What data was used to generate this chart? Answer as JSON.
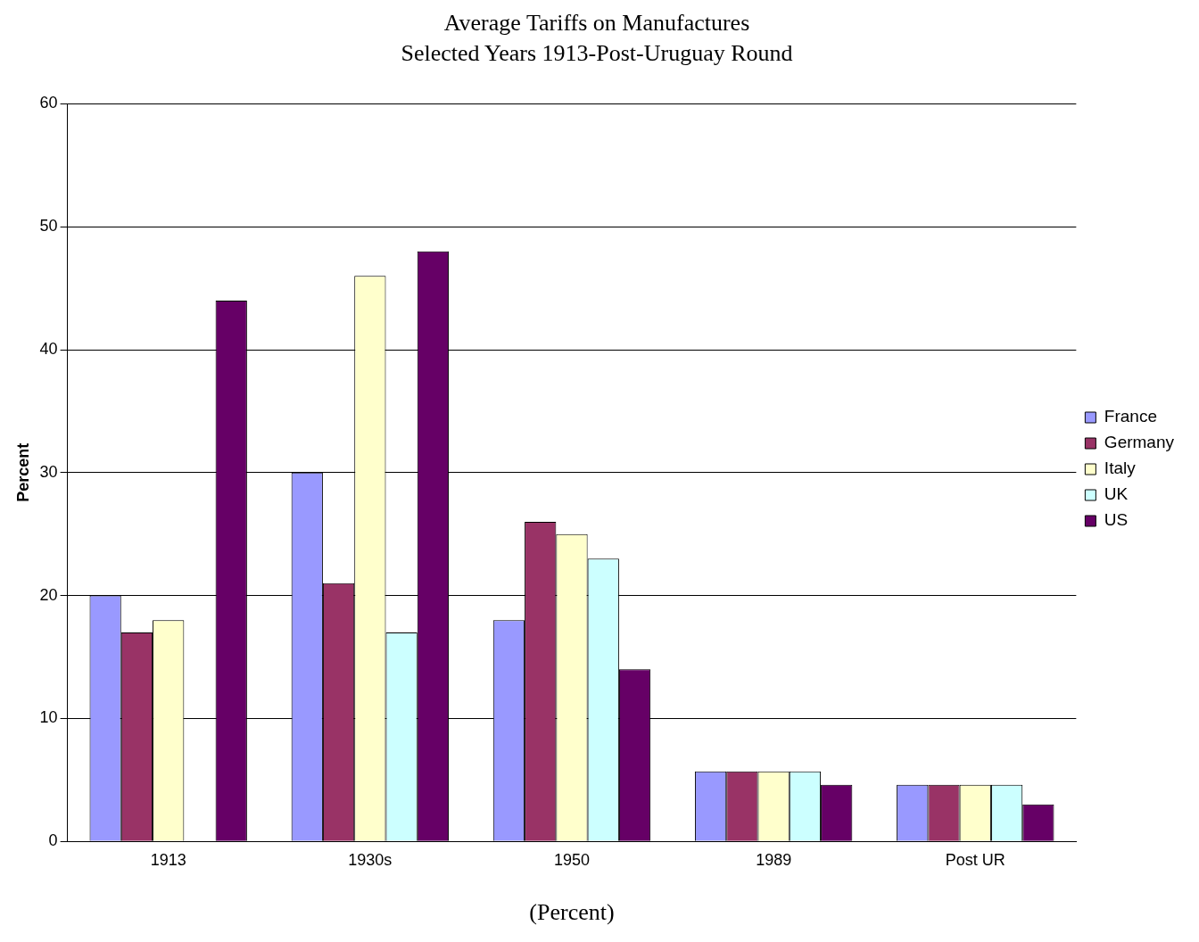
{
  "chart_data": {
    "type": "bar",
    "title": "Average Tariffs on Manufactures",
    "subtitle": "Selected Years 1913-Post-Uruguay Round",
    "xlabel": "(Percent)",
    "ylabel": "Percent",
    "categories": [
      "1913",
      "1930s",
      "1950",
      "1989",
      "Post UR"
    ],
    "series": [
      {
        "name": "France",
        "color": "#9999ff",
        "values": [
          20,
          30,
          18,
          5.7,
          4.6
        ]
      },
      {
        "name": "Germany",
        "color": "#993366",
        "values": [
          17,
          21,
          26,
          5.7,
          4.6
        ]
      },
      {
        "name": "Italy",
        "color": "#ffffcc",
        "values": [
          18,
          46,
          25,
          5.7,
          4.6
        ]
      },
      {
        "name": "UK",
        "color": "#ccffff",
        "values": [
          null,
          17,
          23,
          5.7,
          4.6
        ]
      },
      {
        "name": "US",
        "color": "#660066",
        "values": [
          44,
          48,
          14,
          4.6,
          3.0
        ]
      }
    ],
    "ylim": [
      0,
      60
    ],
    "yticks": [
      0,
      10,
      20,
      30,
      40,
      50,
      60
    ],
    "grid": "y",
    "legend": "right"
  }
}
